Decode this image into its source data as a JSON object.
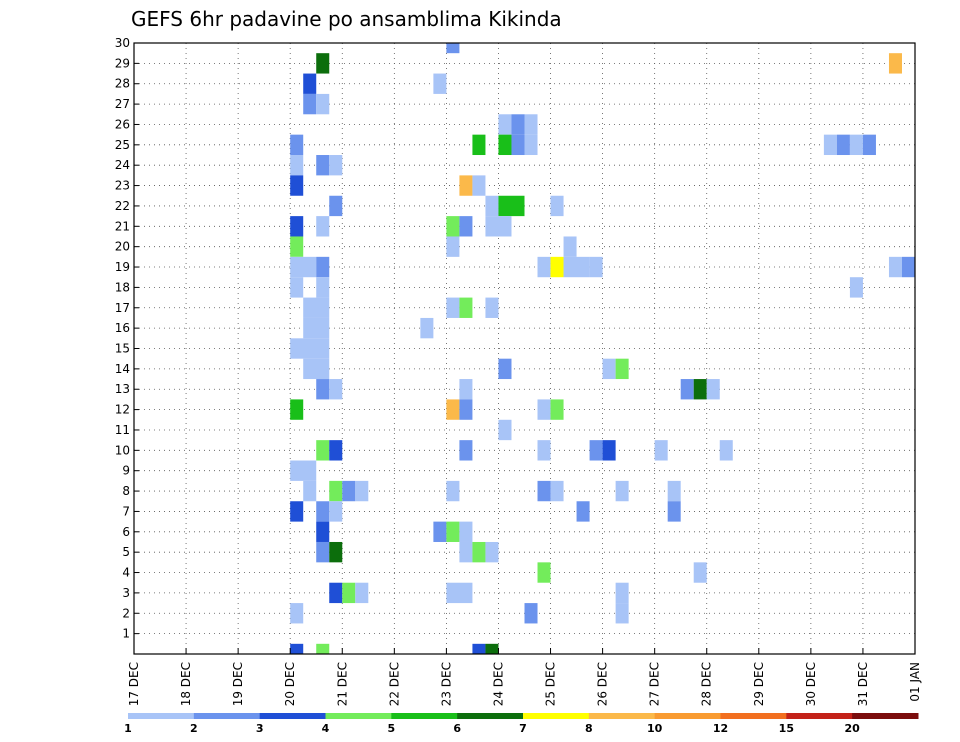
{
  "chart_data": {
    "type": "heatmap",
    "title": "GEFS 6hr padavine po ansamblima Kikinda",
    "xlabel": "",
    "ylabel": "",
    "xlim": [
      0,
      15
    ],
    "ylim": [
      0,
      30
    ],
    "grid": true,
    "x_ticks": [
      {
        "pos": 0,
        "label": "17 DEC"
      },
      {
        "pos": 1,
        "label": "18 DEC"
      },
      {
        "pos": 2,
        "label": "19 DEC"
      },
      {
        "pos": 3,
        "label": "20 DEC"
      },
      {
        "pos": 4,
        "label": "21 DEC"
      },
      {
        "pos": 5,
        "label": "22 DEC"
      },
      {
        "pos": 6,
        "label": "23 DEC"
      },
      {
        "pos": 7,
        "label": "24 DEC"
      },
      {
        "pos": 8,
        "label": "25 DEC"
      },
      {
        "pos": 9,
        "label": "26 DEC"
      },
      {
        "pos": 10,
        "label": "27 DEC"
      },
      {
        "pos": 11,
        "label": "28 DEC"
      },
      {
        "pos": 12,
        "label": "29 DEC"
      },
      {
        "pos": 13,
        "label": "30 DEC"
      },
      {
        "pos": 14,
        "label": "31 DEC"
      },
      {
        "pos": 15,
        "label": "01 JAN"
      }
    ],
    "y_ticks": [
      "1",
      "2",
      "3",
      "4",
      "5",
      "6",
      "7",
      "8",
      "9",
      "10",
      "11",
      "12",
      "13",
      "14",
      "15",
      "16",
      "17",
      "18",
      "19",
      "20",
      "21",
      "22",
      "23",
      "24",
      "25",
      "26",
      "27",
      "28",
      "29",
      "30"
    ],
    "legend": {
      "placement": "bottom",
      "boundaries": [
        "1",
        "2",
        "3",
        "4",
        "5",
        "6",
        "7",
        "8",
        "10",
        "12",
        "15",
        "20"
      ],
      "colors": [
        "#a8c4f7",
        "#6b93ed",
        "#1f4fd6",
        "#73ec5b",
        "#19bf19",
        "#0c6e0c",
        "#ffff00",
        "#fbb94a",
        "#f99b31",
        "#f26f1f",
        "#c32118",
        "#7b0d0d"
      ]
    },
    "cells": [
      {
        "x": 6.0,
        "w": 0.25,
        "y": 30,
        "c": 1
      },
      {
        "x": 3.5,
        "w": 0.25,
        "y": 29,
        "c": 5
      },
      {
        "x": 14.5,
        "w": 0.25,
        "y": 29,
        "c": 7
      },
      {
        "x": 3.25,
        "w": 0.25,
        "y": 28,
        "c": 2
      },
      {
        "x": 5.75,
        "w": 0.25,
        "y": 28,
        "c": 0
      },
      {
        "x": 3.25,
        "w": 0.25,
        "y": 27,
        "c": 1
      },
      {
        "x": 3.5,
        "w": 0.25,
        "y": 27,
        "c": 0
      },
      {
        "x": 7.0,
        "w": 0.25,
        "y": 26,
        "c": 0
      },
      {
        "x": 7.25,
        "w": 0.25,
        "y": 26,
        "c": 1
      },
      {
        "x": 7.5,
        "w": 0.25,
        "y": 26,
        "c": 0
      },
      {
        "x": 3.0,
        "w": 0.25,
        "y": 25,
        "c": 1
      },
      {
        "x": 6.5,
        "w": 0.25,
        "y": 25,
        "c": 4
      },
      {
        "x": 7.0,
        "w": 0.25,
        "y": 25,
        "c": 4
      },
      {
        "x": 7.25,
        "w": 0.25,
        "y": 25,
        "c": 1
      },
      {
        "x": 7.5,
        "w": 0.25,
        "y": 25,
        "c": 0
      },
      {
        "x": 13.25,
        "w": 0.25,
        "y": 25,
        "c": 0
      },
      {
        "x": 13.5,
        "w": 0.25,
        "y": 25,
        "c": 1
      },
      {
        "x": 13.75,
        "w": 0.25,
        "y": 25,
        "c": 0
      },
      {
        "x": 14.0,
        "w": 0.25,
        "y": 25,
        "c": 1
      },
      {
        "x": 3.0,
        "w": 0.25,
        "y": 24,
        "c": 0
      },
      {
        "x": 3.5,
        "w": 0.25,
        "y": 24,
        "c": 1
      },
      {
        "x": 3.75,
        "w": 0.25,
        "y": 24,
        "c": 0
      },
      {
        "x": 3.0,
        "w": 0.25,
        "y": 23,
        "c": 2
      },
      {
        "x": 6.25,
        "w": 0.25,
        "y": 23,
        "c": 7
      },
      {
        "x": 6.5,
        "w": 0.25,
        "y": 23,
        "c": 0
      },
      {
        "x": 3.75,
        "w": 0.25,
        "y": 22,
        "c": 1
      },
      {
        "x": 6.75,
        "w": 0.25,
        "y": 22,
        "c": 0
      },
      {
        "x": 7.0,
        "w": 0.5,
        "y": 22,
        "c": 4
      },
      {
        "x": 8.0,
        "w": 0.25,
        "y": 22,
        "c": 0
      },
      {
        "x": 3.0,
        "w": 0.25,
        "y": 21,
        "c": 2
      },
      {
        "x": 3.5,
        "w": 0.25,
        "y": 21,
        "c": 0
      },
      {
        "x": 6.0,
        "w": 0.25,
        "y": 21,
        "c": 3
      },
      {
        "x": 6.25,
        "w": 0.25,
        "y": 21,
        "c": 1
      },
      {
        "x": 6.75,
        "w": 0.5,
        "y": 21,
        "c": 0
      },
      {
        "x": 3.0,
        "w": 0.25,
        "y": 20,
        "c": 3
      },
      {
        "x": 6.0,
        "w": 0.25,
        "y": 20,
        "c": 0
      },
      {
        "x": 8.25,
        "w": 0.25,
        "y": 20,
        "c": 0
      },
      {
        "x": 3.0,
        "w": 0.5,
        "y": 19,
        "c": 0
      },
      {
        "x": 3.5,
        "w": 0.25,
        "y": 19,
        "c": 1
      },
      {
        "x": 7.75,
        "w": 0.25,
        "y": 19,
        "c": 0
      },
      {
        "x": 8.0,
        "w": 0.25,
        "y": 19,
        "c": 6
      },
      {
        "x": 8.25,
        "w": 0.5,
        "y": 19,
        "c": 0
      },
      {
        "x": 8.75,
        "w": 0.25,
        "y": 19,
        "c": 0
      },
      {
        "x": 14.5,
        "w": 0.25,
        "y": 19,
        "c": 0
      },
      {
        "x": 14.75,
        "w": 0.25,
        "y": 19,
        "c": 1
      },
      {
        "x": 3.0,
        "w": 0.25,
        "y": 18,
        "c": 0
      },
      {
        "x": 3.5,
        "w": 0.25,
        "y": 18,
        "c": 0
      },
      {
        "x": 13.75,
        "w": 0.25,
        "y": 18,
        "c": 0
      },
      {
        "x": 3.25,
        "w": 0.5,
        "y": 17,
        "c": 0
      },
      {
        "x": 6.0,
        "w": 0.25,
        "y": 17,
        "c": 0
      },
      {
        "x": 6.25,
        "w": 0.25,
        "y": 17,
        "c": 3
      },
      {
        "x": 6.75,
        "w": 0.25,
        "y": 17,
        "c": 0
      },
      {
        "x": 3.25,
        "w": 0.5,
        "y": 16,
        "c": 0
      },
      {
        "x": 5.5,
        "w": 0.25,
        "y": 16,
        "c": 0
      },
      {
        "x": 3.0,
        "w": 0.75,
        "y": 15,
        "c": 0
      },
      {
        "x": 3.25,
        "w": 0.5,
        "y": 14,
        "c": 0
      },
      {
        "x": 7.0,
        "w": 0.25,
        "y": 14,
        "c": 1
      },
      {
        "x": 9.0,
        "w": 0.25,
        "y": 14,
        "c": 0
      },
      {
        "x": 9.25,
        "w": 0.25,
        "y": 14,
        "c": 3
      },
      {
        "x": 3.5,
        "w": 0.25,
        "y": 13,
        "c": 1
      },
      {
        "x": 3.75,
        "w": 0.25,
        "y": 13,
        "c": 0
      },
      {
        "x": 6.25,
        "w": 0.25,
        "y": 13,
        "c": 0
      },
      {
        "x": 10.5,
        "w": 0.25,
        "y": 13,
        "c": 1
      },
      {
        "x": 10.75,
        "w": 0.25,
        "y": 13,
        "c": 5
      },
      {
        "x": 11.0,
        "w": 0.25,
        "y": 13,
        "c": 0
      },
      {
        "x": 3.0,
        "w": 0.25,
        "y": 12,
        "c": 4
      },
      {
        "x": 6.0,
        "w": 0.25,
        "y": 12,
        "c": 7
      },
      {
        "x": 6.25,
        "w": 0.25,
        "y": 12,
        "c": 1
      },
      {
        "x": 7.75,
        "w": 0.25,
        "y": 12,
        "c": 0
      },
      {
        "x": 8.0,
        "w": 0.25,
        "y": 12,
        "c": 3
      },
      {
        "x": 7.0,
        "w": 0.25,
        "y": 11,
        "c": 0
      },
      {
        "x": 3.5,
        "w": 0.25,
        "y": 10,
        "c": 3
      },
      {
        "x": 3.75,
        "w": 0.25,
        "y": 10,
        "c": 2
      },
      {
        "x": 6.25,
        "w": 0.25,
        "y": 10,
        "c": 1
      },
      {
        "x": 7.75,
        "w": 0.25,
        "y": 10,
        "c": 0
      },
      {
        "x": 8.75,
        "w": 0.25,
        "y": 10,
        "c": 1
      },
      {
        "x": 9.0,
        "w": 0.25,
        "y": 10,
        "c": 2
      },
      {
        "x": 10.0,
        "w": 0.25,
        "y": 10,
        "c": 0
      },
      {
        "x": 11.25,
        "w": 0.25,
        "y": 10,
        "c": 0
      },
      {
        "x": 3.0,
        "w": 0.5,
        "y": 9,
        "c": 0
      },
      {
        "x": 3.25,
        "w": 0.25,
        "y": 8,
        "c": 0
      },
      {
        "x": 3.75,
        "w": 0.25,
        "y": 8,
        "c": 3
      },
      {
        "x": 4.0,
        "w": 0.25,
        "y": 8,
        "c": 1
      },
      {
        "x": 4.25,
        "w": 0.25,
        "y": 8,
        "c": 0
      },
      {
        "x": 6.0,
        "w": 0.25,
        "y": 8,
        "c": 0
      },
      {
        "x": 7.75,
        "w": 0.25,
        "y": 8,
        "c": 1
      },
      {
        "x": 8.0,
        "w": 0.25,
        "y": 8,
        "c": 0
      },
      {
        "x": 9.25,
        "w": 0.25,
        "y": 8,
        "c": 0
      },
      {
        "x": 10.25,
        "w": 0.25,
        "y": 8,
        "c": 0
      },
      {
        "x": 3.0,
        "w": 0.25,
        "y": 7,
        "c": 2
      },
      {
        "x": 3.5,
        "w": 0.25,
        "y": 7,
        "c": 1
      },
      {
        "x": 3.75,
        "w": 0.25,
        "y": 7,
        "c": 0
      },
      {
        "x": 8.5,
        "w": 0.25,
        "y": 7,
        "c": 1
      },
      {
        "x": 10.25,
        "w": 0.25,
        "y": 7,
        "c": 1
      },
      {
        "x": 3.5,
        "w": 0.25,
        "y": 6,
        "c": 2
      },
      {
        "x": 5.75,
        "w": 0.25,
        "y": 6,
        "c": 1
      },
      {
        "x": 6.0,
        "w": 0.25,
        "y": 6,
        "c": 3
      },
      {
        "x": 6.25,
        "w": 0.25,
        "y": 6,
        "c": 0
      },
      {
        "x": 3.5,
        "w": 0.25,
        "y": 5,
        "c": 1
      },
      {
        "x": 3.75,
        "w": 0.25,
        "y": 5,
        "c": 5
      },
      {
        "x": 6.25,
        "w": 0.25,
        "y": 5,
        "c": 0
      },
      {
        "x": 6.5,
        "w": 0.25,
        "y": 5,
        "c": 3
      },
      {
        "x": 6.75,
        "w": 0.25,
        "y": 5,
        "c": 0
      },
      {
        "x": 7.75,
        "w": 0.25,
        "y": 4,
        "c": 3
      },
      {
        "x": 10.75,
        "w": 0.25,
        "y": 4,
        "c": 0
      },
      {
        "x": 3.75,
        "w": 0.25,
        "y": 3,
        "c": 2
      },
      {
        "x": 4.0,
        "w": 0.25,
        "y": 3,
        "c": 3
      },
      {
        "x": 4.25,
        "w": 0.25,
        "y": 3,
        "c": 0
      },
      {
        "x": 6.0,
        "w": 0.5,
        "y": 3,
        "c": 0
      },
      {
        "x": 9.25,
        "w": 0.25,
        "y": 3,
        "c": 0
      },
      {
        "x": 3.0,
        "w": 0.25,
        "y": 2,
        "c": 0
      },
      {
        "x": 7.5,
        "w": 0.25,
        "y": 2,
        "c": 1
      },
      {
        "x": 9.25,
        "w": 0.25,
        "y": 2,
        "c": 0
      },
      {
        "x": 3.0,
        "w": 0.25,
        "y": 0,
        "c": 2
      },
      {
        "x": 3.5,
        "w": 0.25,
        "y": 0,
        "c": 3
      },
      {
        "x": 6.5,
        "w": 0.25,
        "y": 0,
        "c": 2
      },
      {
        "x": 6.75,
        "w": 0.25,
        "y": 0,
        "c": 5
      }
    ]
  }
}
